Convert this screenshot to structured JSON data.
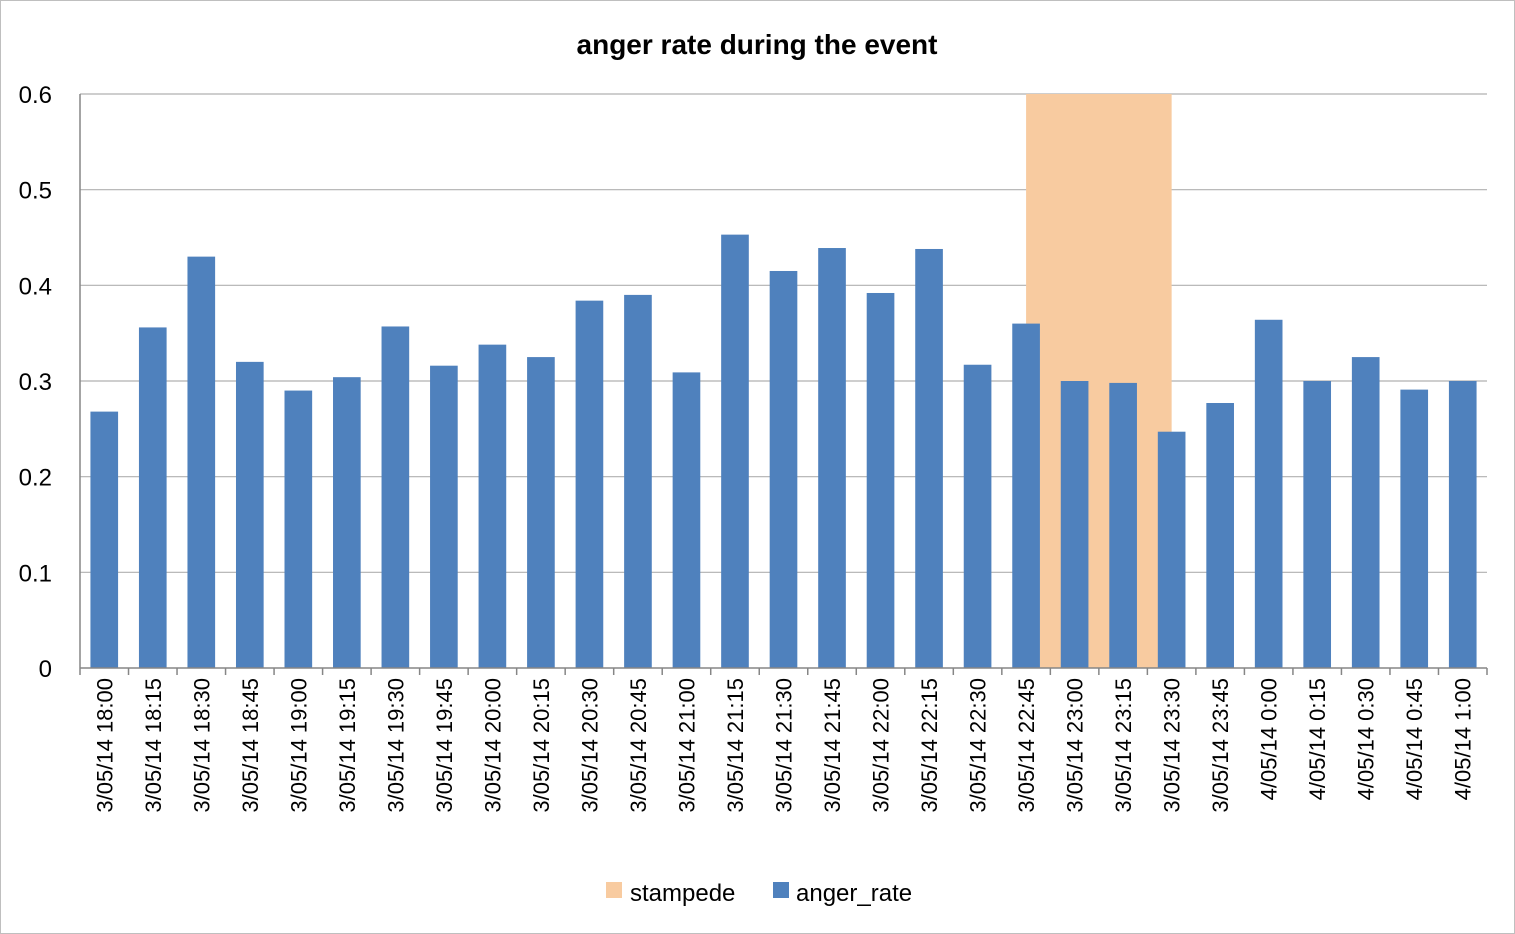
{
  "chart_data": {
    "type": "bar",
    "title": "anger rate during the event",
    "xlabel": "",
    "ylabel": "",
    "ylim": [
      0,
      0.6
    ],
    "yticks": [
      "0",
      "0.1",
      "0.2",
      "0.3",
      "0.4",
      "0.5",
      "0.6"
    ],
    "grid": true,
    "legend_position": "bottom",
    "categories": [
      "3/05/14 18:00",
      "3/05/14 18:15",
      "3/05/14 18:30",
      "3/05/14 18:45",
      "3/05/14 19:00",
      "3/05/14 19:15",
      "3/05/14 19:30",
      "3/05/14 19:45",
      "3/05/14 20:00",
      "3/05/14 20:15",
      "3/05/14 20:30",
      "3/05/14 20:45",
      "3/05/14 21:00",
      "3/05/14 21:15",
      "3/05/14 21:30",
      "3/05/14 21:45",
      "3/05/14 22:00",
      "3/05/14 22:15",
      "3/05/14 22:30",
      "3/05/14 22:45",
      "3/05/14 23:00",
      "3/05/14 23:15",
      "3/05/14 23:30",
      "3/05/14 23:45",
      "4/05/14 0:00",
      "4/05/14 0:15",
      "4/05/14 0:30",
      "4/05/14 0:45",
      "4/05/14 1:00"
    ],
    "series": [
      {
        "name": "stampede",
        "kind": "shaded-region",
        "color": "#f8cba0",
        "span_categories": [
          "3/05/14 22:45",
          "3/05/14 23:30"
        ],
        "value": 0.6
      },
      {
        "name": "anger_rate",
        "kind": "bar",
        "color": "#4f81bd",
        "values": [
          0.268,
          0.356,
          0.43,
          0.32,
          0.29,
          0.304,
          0.357,
          0.316,
          0.338,
          0.325,
          0.384,
          0.39,
          0.309,
          0.453,
          0.415,
          0.439,
          0.392,
          0.438,
          0.317,
          0.36,
          0.3,
          0.298,
          0.247,
          0.277,
          0.364,
          0.3,
          0.325,
          0.291,
          0.3
        ]
      }
    ]
  },
  "colors": {
    "gridline": "#b0b0b0",
    "axis": "#868686"
  }
}
